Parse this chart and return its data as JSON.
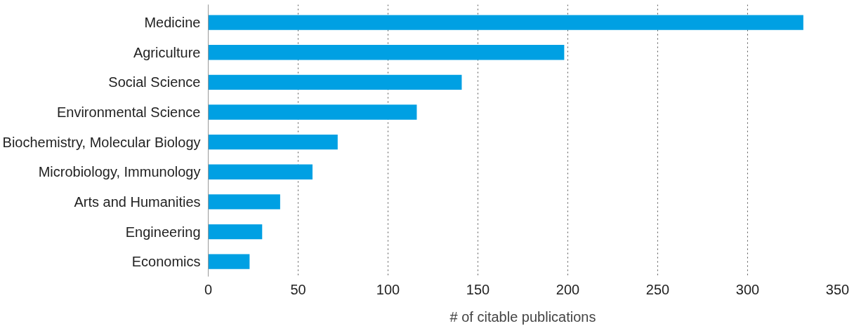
{
  "chart_data": {
    "type": "bar",
    "orientation": "horizontal",
    "xlabel": "# of citable publications",
    "categories": [
      "Medicine",
      "Agriculture",
      "Social Science",
      "Environmental Science",
      "Biochemistry, Molecular Biology",
      "Microbiology, Immunology",
      "Arts and Humanities",
      "Engineering",
      "Economics"
    ],
    "values": [
      331,
      198,
      141,
      116,
      72,
      58,
      40,
      30,
      23
    ],
    "color": "#00a0e3",
    "xlim": [
      0,
      350
    ],
    "xticks": [
      0,
      50,
      100,
      150,
      200,
      250,
      300,
      350
    ],
    "grid": "x"
  }
}
